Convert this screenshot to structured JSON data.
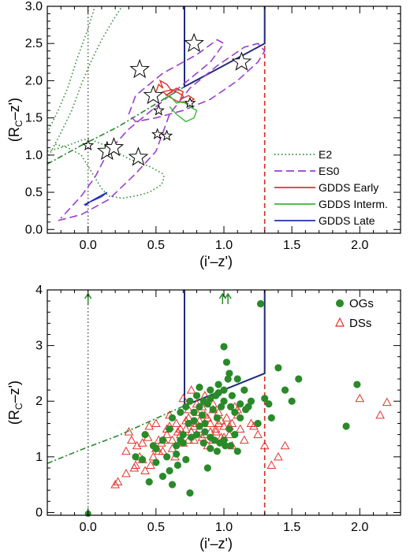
{
  "chart_data": [
    {
      "type": "line",
      "panel": "top",
      "xlabel": "(i'–z')",
      "ylabel": "(R–z')",
      "ylabel_sub": "C",
      "xlim": [
        -0.3,
        2.3
      ],
      "ylim": [
        -0.05,
        3.0
      ],
      "xticks": [
        0.0,
        0.5,
        1.0,
        1.5,
        2.0
      ],
      "xtick_labels": [
        "0.0",
        "0.5",
        "1.0",
        "1.5",
        "2.0"
      ],
      "yticks": [
        0.0,
        0.5,
        1.0,
        1.5,
        2.0,
        2.5,
        3.0
      ],
      "ytick_labels": [
        "0.0",
        "0.5",
        "1.0",
        "1.5",
        "2.0",
        "2.5",
        "3.0"
      ],
      "legend_position": "bottom-right",
      "colors": {
        "e2": "#2e8b2e",
        "es0": "#9b3fd0",
        "early": "#e0342a",
        "interm": "#38b838",
        "late": "#1f2fb0",
        "cut": "#d62a2a",
        "box": "#1f2a7a"
      },
      "series": [
        {
          "name": "E2",
          "style": "dotted",
          "color": "#2e8b2e",
          "x": [
            -0.3,
            -0.2,
            -0.12,
            -0.05,
            0.0,
            0.1,
            0.2,
            0.3,
            0.45,
            0.55,
            0.56,
            0.54,
            0.45,
            0.35,
            0.25,
            0.15,
            0.1,
            0.05,
            0.0,
            -0.05,
            -0.15,
            -0.25
          ],
          "y": [
            1.05,
            1.1,
            1.15,
            1.2,
            1.22,
            1.15,
            1.05,
            0.95,
            0.85,
            0.75,
            0.7,
            0.6,
            0.5,
            0.45,
            0.42,
            0.45,
            0.55,
            0.7,
            0.85,
            1.0,
            1.1,
            1.15
          ]
        },
        {
          "name": "E2",
          "style": "dotted",
          "color": "#2e8b2e",
          "x": [
            -0.3,
            -0.22,
            -0.15,
            -0.08,
            0.0,
            0.05
          ],
          "y": [
            1.3,
            1.6,
            1.9,
            2.3,
            2.7,
            3.0
          ]
        },
        {
          "name": "E2",
          "style": "dotted",
          "color": "#2e8b2e",
          "x": [
            -0.3,
            -0.2,
            -0.12,
            -0.05,
            0.02,
            0.1,
            0.18,
            0.25
          ],
          "y": [
            0.95,
            1.3,
            1.6,
            1.95,
            2.25,
            2.55,
            2.8,
            3.0
          ]
        },
        {
          "name": "ES0",
          "style": "dashed",
          "color": "#9b3fd0",
          "x": [
            -0.22,
            -0.05,
            0.15,
            0.35,
            0.5,
            0.55,
            0.6,
            0.75,
            0.95,
            1.15,
            1.25,
            1.3,
            1.25,
            1.1,
            0.9,
            0.7,
            0.5,
            0.35,
            0.3,
            0.35,
            0.55,
            0.8,
            0.95,
            1.0,
            0.9,
            0.7,
            0.5,
            0.3,
            0.15,
            0.05,
            -0.05,
            -0.15,
            -0.2
          ],
          "y": [
            0.12,
            0.2,
            0.4,
            0.75,
            1.05,
            1.3,
            1.55,
            1.9,
            2.2,
            2.45,
            2.5,
            2.4,
            2.25,
            2.0,
            1.75,
            1.6,
            1.5,
            1.45,
            1.55,
            1.8,
            2.1,
            2.35,
            2.55,
            2.5,
            2.25,
            1.95,
            1.65,
            1.35,
            1.05,
            0.7,
            0.45,
            0.25,
            0.15
          ]
        },
        {
          "name": "GDDS Early",
          "style": "solid",
          "color": "#e0342a",
          "x": [
            0.5,
            0.52,
            0.55,
            0.53,
            0.58,
            0.62,
            0.57,
            0.65,
            0.7,
            0.68,
            0.74,
            0.78,
            0.72,
            0.66,
            0.6,
            0.55,
            0.62,
            0.7
          ],
          "y": [
            1.85,
            1.95,
            1.9,
            2.0,
            1.95,
            1.85,
            1.8,
            1.9,
            1.85,
            1.75,
            1.8,
            1.75,
            1.7,
            1.72,
            1.78,
            1.85,
            1.88,
            1.8
          ]
        },
        {
          "name": "GDDS Interm.",
          "style": "solid",
          "color": "#38b838",
          "x": [
            0.55,
            0.6,
            0.65,
            0.7,
            0.75,
            0.8,
            0.78,
            0.72,
            0.65,
            0.6
          ],
          "y": [
            1.75,
            1.8,
            1.7,
            1.72,
            1.65,
            1.6,
            1.5,
            1.45,
            1.55,
            1.65
          ]
        },
        {
          "name": "GDDS Late",
          "style": "solid",
          "color": "#1f2fb0",
          "x": [
            -0.02,
            0.02,
            0.06,
            0.1,
            0.14,
            0.1,
            0.05,
            0.0,
            -0.03
          ],
          "y": [
            0.32,
            0.38,
            0.42,
            0.46,
            0.5,
            0.44,
            0.4,
            0.36,
            0.33
          ]
        }
      ],
      "stars": [
        {
          "x": 0.38,
          "y": 2.15,
          "size": "large"
        },
        {
          "x": 0.78,
          "y": 2.5,
          "size": "large"
        },
        {
          "x": 1.13,
          "y": 2.25,
          "size": "large"
        },
        {
          "x": 0.48,
          "y": 1.8,
          "size": "large"
        },
        {
          "x": 0.52,
          "y": 1.6,
          "size": "small"
        },
        {
          "x": 0.75,
          "y": 1.7,
          "size": "small"
        },
        {
          "x": 0.51,
          "y": 1.28,
          "size": "small"
        },
        {
          "x": 0.58,
          "y": 1.26,
          "size": "small"
        },
        {
          "x": 0.0,
          "y": 1.13,
          "size": "small"
        },
        {
          "x": 0.14,
          "y": 1.05,
          "size": "large"
        },
        {
          "x": 0.19,
          "y": 1.1,
          "size": "large"
        },
        {
          "x": 0.37,
          "y": 0.97,
          "size": "large"
        }
      ],
      "selection_box": {
        "x": [
          0.71,
          0.71,
          1.3,
          1.3
        ],
        "y": [
          3.0,
          1.92,
          2.5,
          3.0
        ]
      },
      "dashdot_line": {
        "x": [
          -0.3,
          -0.05,
          0.22,
          0.71,
          0.71
        ],
        "y": [
          0.88,
          1.13,
          1.38,
          1.92,
          3.0
        ]
      },
      "vline_dotted": 0.0,
      "vline_dashed": 1.3
    },
    {
      "type": "scatter",
      "panel": "bottom",
      "xlabel": "(i'–z')",
      "ylabel": "(R–z')",
      "ylabel_sub": "C",
      "xlim": [
        -0.3,
        2.3
      ],
      "ylim": [
        -0.05,
        4.0
      ],
      "xticks": [
        0.0,
        0.5,
        1.0,
        1.5,
        2.0
      ],
      "xtick_labels": [
        "0.0",
        "0.5",
        "1.0",
        "1.5",
        "2.0"
      ],
      "yticks": [
        0,
        1,
        2,
        3,
        4
      ],
      "ytick_labels": [
        "0",
        "1",
        "2",
        "3",
        "4"
      ],
      "legend_position": "top-right",
      "series": [
        {
          "name": "OGs",
          "marker": "filled-circle",
          "color": "#2a8a2a",
          "x": [
            0.35,
            0.42,
            0.5,
            0.55,
            0.6,
            0.62,
            0.65,
            0.68,
            0.7,
            0.72,
            0.74,
            0.75,
            0.78,
            0.8,
            0.82,
            0.84,
            0.85,
            0.86,
            0.88,
            0.9,
            0.92,
            0.94,
            0.95,
            0.96,
            0.98,
            1.0,
            1.0,
            1.02,
            1.04,
            1.05,
            1.06,
            1.08,
            1.1,
            1.12,
            1.15,
            1.18,
            1.2,
            1.25,
            1.3,
            1.35,
            1.4,
            1.45,
            1.5,
            1.55,
            0.78,
            0.82,
            0.86,
            0.9,
            0.93,
            0.97,
            1.01,
            1.04,
            1.08,
            0.55,
            0.6,
            0.66,
            0.72,
            0.45,
            0.5,
            0.65,
            0.7,
            0.76,
            0.8,
            0.85,
            0.9,
            0.95,
            1.0,
            1.05,
            1.1,
            1.27,
            1.33,
            1.9,
            1.98,
            0.75,
            0.88,
            0.62,
            1.0,
            1.03,
            0.82,
            0.9,
            0.96,
            1.12,
            1.16,
            0.58,
            0.68,
            0.4,
            0.48
          ],
          "y": [
            1.0,
            1.4,
            0.9,
            1.3,
            1.5,
            1.7,
            1.2,
            1.8,
            1.4,
            1.9,
            1.6,
            2.0,
            1.8,
            2.1,
            1.9,
            1.75,
            2.0,
            1.6,
            1.95,
            2.05,
            1.85,
            2.1,
            1.7,
            2.3,
            1.9,
            2.0,
            2.98,
            2.7,
            2.5,
            1.9,
            2.1,
            1.8,
            2.4,
            1.7,
            2.2,
            1.9,
            2.0,
            1.6,
            2.05,
            1.7,
            2.6,
            2.2,
            2.0,
            2.4,
            1.65,
            1.55,
            1.45,
            1.35,
            1.3,
            1.25,
            1.2,
            1.5,
            1.4,
            0.65,
            0.75,
            0.85,
            0.95,
            0.55,
            1.15,
            1.05,
            1.25,
            1.35,
            1.4,
            1.25,
            1.15,
            1.1,
            1.3,
            1.2,
            1.1,
            3.75,
            1.95,
            1.55,
            2.3,
            0.35,
            0.8,
            0.5,
            2.2,
            2.4,
            2.25,
            2.2,
            2.15,
            1.95,
            1.85,
            1.0,
            1.3,
            0.95,
            1.2
          ]
        },
        {
          "name": "DSs",
          "marker": "open-triangle",
          "color": "#e0342a",
          "x": [
            0.2,
            0.22,
            0.28,
            0.32,
            0.35,
            0.38,
            0.4,
            0.42,
            0.45,
            0.48,
            0.5,
            0.52,
            0.55,
            0.58,
            0.6,
            0.62,
            0.65,
            0.68,
            0.7,
            0.72,
            0.74,
            0.76,
            0.78,
            0.8,
            0.82,
            0.84,
            0.86,
            0.88,
            0.9,
            0.92,
            0.94,
            0.96,
            0.98,
            1.0,
            1.02,
            1.04,
            1.06,
            1.08,
            1.1,
            1.12,
            1.15,
            1.2,
            1.25,
            1.3,
            1.35,
            1.4,
            1.45,
            2.0,
            2.15,
            2.2,
            0.3,
            0.36,
            0.44,
            0.5,
            0.56,
            0.64,
            0.7,
            0.76,
            0.82,
            0.88,
            0.94,
            1.0,
            1.06,
            0.6,
            0.66,
            0.72,
            0.78,
            0.84,
            0.9,
            0.96,
            0.54,
            0.58,
            0.62,
            0.68,
            0.74,
            0.8,
            0.86,
            0.92,
            0.98,
            1.04,
            0.46,
            0.52,
            0.28,
            0.34,
            0.4,
            0.8,
            0.86,
            0.92,
            0.74,
            1.1,
            1.22
          ],
          "y": [
            0.5,
            0.55,
            1.1,
            1.3,
            0.85,
            1.0,
            1.25,
            0.75,
            1.55,
            1.0,
            1.6,
            1.3,
            1.1,
            1.5,
            1.75,
            1.3,
            1.6,
            1.4,
            2.05,
            1.5,
            1.7,
            2.2,
            1.3,
            1.8,
            1.5,
            1.9,
            1.4,
            1.7,
            1.6,
            1.3,
            1.5,
            1.8,
            1.35,
            1.55,
            1.7,
            1.4,
            1.6,
            1.9,
            1.75,
            1.5,
            1.3,
            1.6,
            1.4,
            1.2,
            0.85,
            1.0,
            1.2,
            2.05,
            1.75,
            1.98,
            1.45,
            1.2,
            1.35,
            1.15,
            1.3,
            1.0,
            1.25,
            1.45,
            1.65,
            1.2,
            1.45,
            1.35,
            1.2,
            1.55,
            1.45,
            1.65,
            1.55,
            1.35,
            1.45,
            1.6,
            1.25,
            1.4,
            1.15,
            1.5,
            1.3,
            1.6,
            1.75,
            1.85,
            1.65,
            1.55,
            0.85,
            1.1,
            0.7,
            0.8,
            0.95,
            1.95,
            2.1,
            1.95,
            1.85,
            1.85,
            1.55
          ]
        }
      ],
      "arrows": [
        {
          "x": 0.0
        },
        {
          "x": 0.99
        },
        {
          "x": 1.03
        }
      ],
      "selection_box": {
        "x": [
          0.71,
          0.71,
          1.3,
          1.3
        ],
        "y": [
          4.0,
          1.92,
          2.5,
          4.0
        ]
      },
      "dashdot_line": {
        "x": [
          -0.3,
          -0.05,
          0.22,
          0.71,
          0.71
        ],
        "y": [
          0.88,
          1.13,
          1.38,
          1.92,
          4.0
        ]
      },
      "vline_dotted": 0.0,
      "vline_dashed": 1.3
    }
  ]
}
